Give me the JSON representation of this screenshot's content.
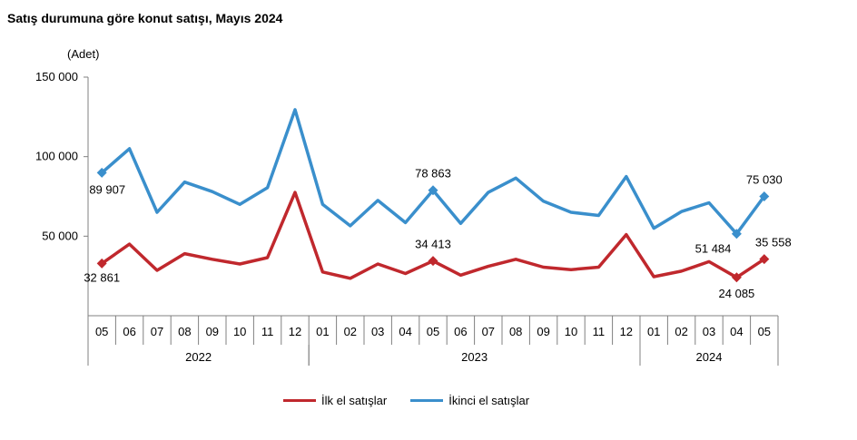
{
  "title": "Satış durumuna göre konut satışı, Mayıs 2024",
  "chart_data": {
    "type": "line",
    "title": "Satış durumuna göre konut satışı, Mayıs 2024",
    "ylabel": "(Adet)",
    "xlabel": "",
    "ylim": [
      0,
      150000
    ],
    "yticks": [
      50000,
      100000,
      150000
    ],
    "ytick_labels": [
      "50 000",
      "100 000",
      "150 000"
    ],
    "categories": [
      "05",
      "06",
      "07",
      "08",
      "09",
      "10",
      "11",
      "12",
      "01",
      "02",
      "03",
      "04",
      "05",
      "06",
      "07",
      "08",
      "09",
      "10",
      "11",
      "12",
      "01",
      "02",
      "03",
      "04",
      "05"
    ],
    "year_groups": [
      {
        "label": "2022",
        "start": 0,
        "end": 7
      },
      {
        "label": "2023",
        "start": 8,
        "end": 19
      },
      {
        "label": "2024",
        "start": 20,
        "end": 24
      }
    ],
    "grid": false,
    "legend_position": "bottom",
    "series": [
      {
        "name": "İlk el satışlar",
        "color": "#c0282d",
        "values": [
          32861,
          45000,
          28500,
          39000,
          35500,
          32500,
          36500,
          77500,
          27500,
          23500,
          32500,
          26500,
          34413,
          25500,
          31000,
          35500,
          30500,
          29000,
          30500,
          51000,
          24500,
          28000,
          34000,
          24085,
          35558
        ]
      },
      {
        "name": "İkinci el satışlar",
        "color": "#3a8fcc",
        "values": [
          89907,
          105000,
          65000,
          84000,
          78000,
          70000,
          80500,
          129500,
          70000,
          56500,
          72500,
          58500,
          78863,
          58000,
          77500,
          86500,
          72000,
          65000,
          63000,
          87500,
          55000,
          65500,
          71000,
          51484,
          75030
        ]
      }
    ],
    "annotations": [
      {
        "series": 0,
        "index": 0,
        "text": "32 861"
      },
      {
        "series": 0,
        "index": 12,
        "text": "34 413"
      },
      {
        "series": 0,
        "index": 23,
        "text": "24 085"
      },
      {
        "series": 0,
        "index": 24,
        "text": "35 558"
      },
      {
        "series": 1,
        "index": 0,
        "text": "89 907"
      },
      {
        "series": 1,
        "index": 12,
        "text": "78 863"
      },
      {
        "series": 1,
        "index": 23,
        "text": "51 484"
      },
      {
        "series": 1,
        "index": 24,
        "text": "75 030"
      }
    ]
  }
}
